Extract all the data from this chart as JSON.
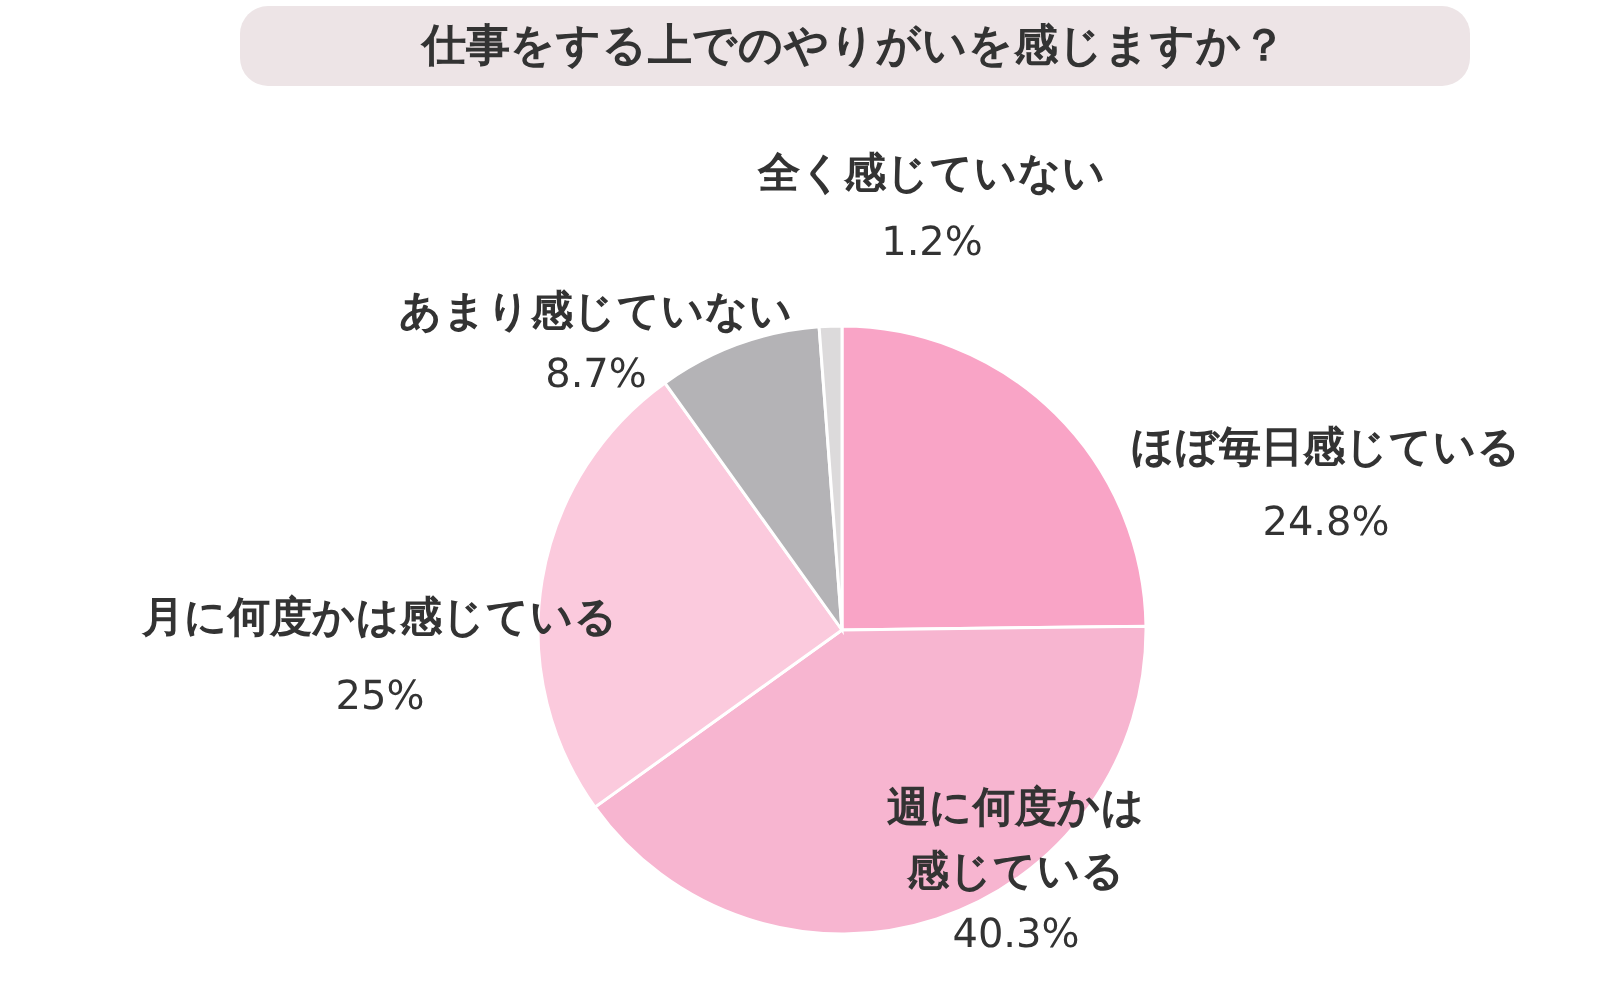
{
  "chart_data": {
    "type": "pie",
    "title": "仕事をする上でのやりがいを感じますか？",
    "categories": [
      "ほぼ毎日感じている",
      "週に何度かは感じている",
      "月に何度かは感じている",
      "あまり感じていない",
      "全く感じていない"
    ],
    "values": [
      24.8,
      40.3,
      25,
      8.7,
      1.2
    ],
    "value_labels": [
      "24.8%",
      "40.3%",
      "25%",
      "8.7%",
      "1.2%"
    ],
    "colors": [
      "#f9a4c6",
      "#f7b5d0",
      "#fbcadd",
      "#b4b3b6",
      "#dcdadb"
    ]
  }
}
